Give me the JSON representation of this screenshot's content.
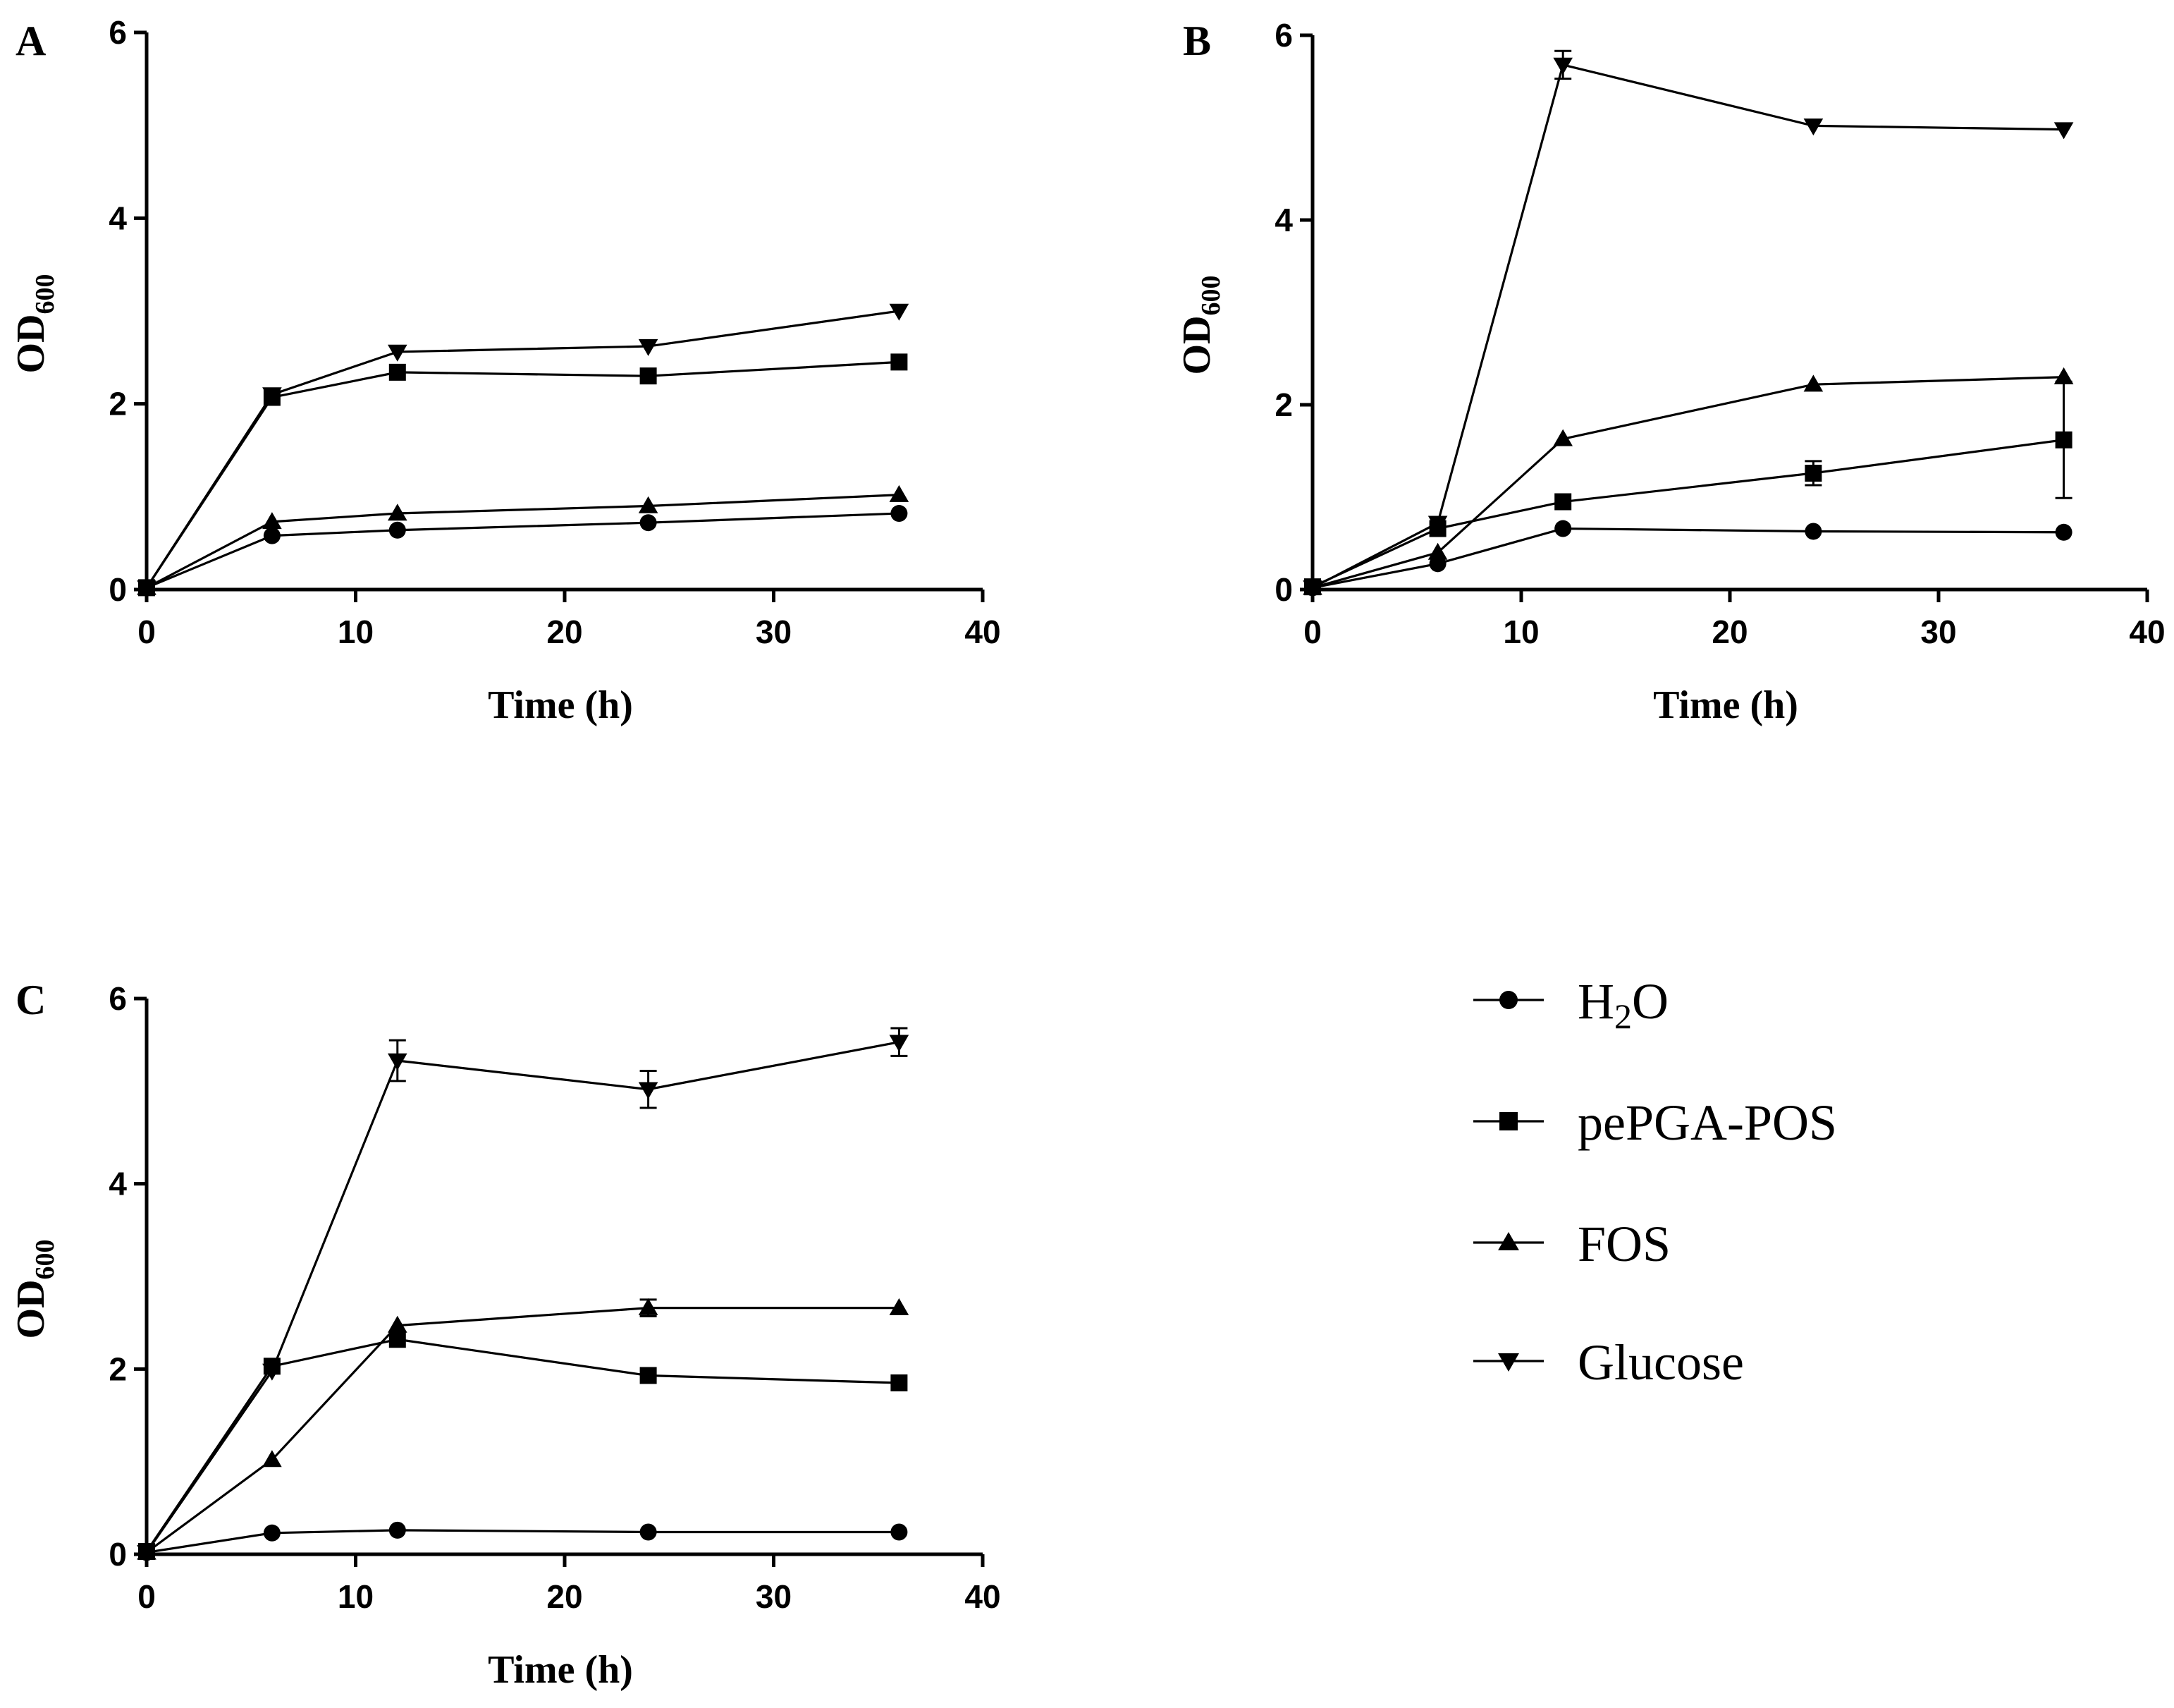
{
  "chart_data": [
    {
      "type": "line",
      "panel": "A",
      "xlabel": "Time (h)",
      "ylabel": "OD",
      "ylabel_sub": "600",
      "xlim": [
        0,
        40
      ],
      "ylim": [
        0,
        6
      ],
      "xticks": [
        0,
        10,
        20,
        30,
        40
      ],
      "yticks": [
        0,
        2,
        4,
        6
      ],
      "x": [
        0,
        6,
        12,
        24,
        36
      ],
      "series": [
        {
          "name": "H2O",
          "values": [
            0.02,
            0.58,
            0.64,
            0.72,
            0.82
          ],
          "errors": [
            0,
            0.03,
            0.02,
            0.02,
            0.02
          ]
        },
        {
          "name": "pePGA-POS",
          "values": [
            0.02,
            2.07,
            2.34,
            2.3,
            2.45
          ],
          "errors": [
            0,
            0.05,
            0.03,
            0.03,
            0.03
          ]
        },
        {
          "name": "FOS",
          "values": [
            0.02,
            0.73,
            0.82,
            0.9,
            1.02
          ],
          "errors": [
            0,
            0.03,
            0.02,
            0.02,
            0.02
          ]
        },
        {
          "name": "Glucose",
          "values": [
            0.02,
            2.1,
            2.56,
            2.62,
            3.0
          ],
          "errors": [
            0,
            0.04,
            0.03,
            0.03,
            0.03
          ]
        }
      ]
    },
    {
      "type": "line",
      "panel": "B",
      "xlabel": "Time (h)",
      "ylabel": "OD",
      "ylabel_sub": "600",
      "xlim": [
        0,
        40
      ],
      "ylim": [
        0,
        6
      ],
      "xticks": [
        0,
        10,
        20,
        30,
        40
      ],
      "yticks": [
        0,
        2,
        4,
        6
      ],
      "x": [
        0,
        6,
        12,
        24,
        36
      ],
      "series": [
        {
          "name": "H2O",
          "values": [
            0.02,
            0.28,
            0.66,
            0.63,
            0.62
          ],
          "errors": [
            0,
            0.03,
            0.03,
            0.02,
            0.02
          ]
        },
        {
          "name": "pePGA-POS",
          "values": [
            0.03,
            0.66,
            0.95,
            1.26,
            1.62
          ],
          "errors": [
            0,
            0.05,
            0.05,
            0.13,
            0.63
          ]
        },
        {
          "name": "FOS",
          "values": [
            0.02,
            0.4,
            1.63,
            2.22,
            2.3
          ],
          "errors": [
            0,
            0.03,
            0.03,
            0.03,
            0.03
          ]
        },
        {
          "name": "Glucose",
          "values": [
            0.02,
            0.72,
            5.68,
            5.02,
            4.98
          ],
          "errors": [
            0,
            0.05,
            0.15,
            0.05,
            0.04
          ]
        }
      ]
    },
    {
      "type": "line",
      "panel": "C",
      "xlabel": "Time (h)",
      "ylabel": "OD",
      "ylabel_sub": "600",
      "xlim": [
        0,
        40
      ],
      "ylim": [
        0,
        6
      ],
      "xticks": [
        0,
        10,
        20,
        30,
        40
      ],
      "yticks": [
        0,
        2,
        4,
        6
      ],
      "x": [
        0,
        6,
        12,
        24,
        36
      ],
      "series": [
        {
          "name": "H2O",
          "values": [
            0.02,
            0.23,
            0.26,
            0.24,
            0.24
          ],
          "errors": [
            0,
            0.02,
            0.02,
            0.02,
            0.02
          ]
        },
        {
          "name": "pePGA-POS",
          "values": [
            0.03,
            2.03,
            2.32,
            1.93,
            1.85
          ],
          "errors": [
            0,
            0.05,
            0.05,
            0.05,
            0.06
          ]
        },
        {
          "name": "FOS",
          "values": [
            0.02,
            1.02,
            2.47,
            2.66,
            2.66
          ],
          "errors": [
            0,
            0.03,
            0.05,
            0.09,
            0.03
          ]
        },
        {
          "name": "Glucose",
          "values": [
            0.02,
            1.98,
            5.33,
            5.02,
            5.53
          ],
          "errors": [
            0,
            0.05,
            0.22,
            0.2,
            0.15
          ]
        }
      ]
    }
  ],
  "legend": [
    {
      "marker": "circle",
      "label": "H",
      "sub": "2",
      "suffix": "O"
    },
    {
      "marker": "square",
      "label": "pePGA-POS"
    },
    {
      "marker": "triangle-up",
      "label": "FOS"
    },
    {
      "marker": "triangle-down",
      "label": "Glucose"
    }
  ],
  "colors": {
    "ink": "#000000",
    "background": "#ffffff"
  }
}
